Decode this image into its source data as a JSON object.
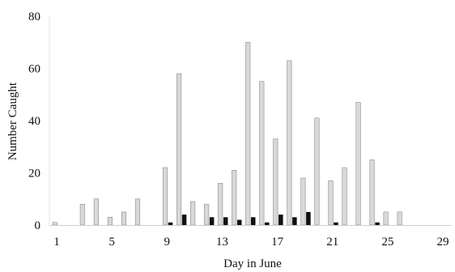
{
  "chart_data": {
    "type": "bar",
    "xlabel": "Day in June",
    "ylabel": "Number Caught",
    "xticks": [
      1,
      5,
      9,
      13,
      17,
      21,
      25,
      29
    ],
    "yticks": [
      0,
      20,
      40,
      60,
      80
    ],
    "xlim": [
      1,
      29
    ],
    "ylim": [
      0,
      80
    ],
    "grid": false,
    "legend": "none",
    "series": [
      {
        "color": "#d9d9d9",
        "values": [
          {
            "x": 1,
            "y": 1
          },
          {
            "x": 3,
            "y": 8
          },
          {
            "x": 4,
            "y": 10
          },
          {
            "x": 5,
            "y": 3
          },
          {
            "x": 6,
            "y": 5
          },
          {
            "x": 7,
            "y": 10
          },
          {
            "x": 9,
            "y": 22
          },
          {
            "x": 10,
            "y": 58
          },
          {
            "x": 11,
            "y": 9
          },
          {
            "x": 12,
            "y": 8
          },
          {
            "x": 13,
            "y": 16
          },
          {
            "x": 14,
            "y": 21
          },
          {
            "x": 15,
            "y": 70
          },
          {
            "x": 16,
            "y": 55
          },
          {
            "x": 17,
            "y": 33
          },
          {
            "x": 18,
            "y": 63
          },
          {
            "x": 19,
            "y": 18
          },
          {
            "x": 20,
            "y": 41
          },
          {
            "x": 21,
            "y": 17
          },
          {
            "x": 22,
            "y": 22
          },
          {
            "x": 23,
            "y": 47
          },
          {
            "x": 24,
            "y": 25
          },
          {
            "x": 25,
            "y": 5
          },
          {
            "x": 26,
            "y": 5
          }
        ]
      },
      {
        "color": "#111111",
        "values": [
          {
            "x": 9,
            "y": 1
          },
          {
            "x": 10,
            "y": 4
          },
          {
            "x": 12,
            "y": 3
          },
          {
            "x": 13,
            "y": 3
          },
          {
            "x": 14,
            "y": 2
          },
          {
            "x": 15,
            "y": 3
          },
          {
            "x": 16,
            "y": 1
          },
          {
            "x": 17,
            "y": 4
          },
          {
            "x": 18,
            "y": 3
          },
          {
            "x": 19,
            "y": 5
          },
          {
            "x": 21,
            "y": 1
          },
          {
            "x": 24,
            "y": 1
          }
        ]
      }
    ]
  }
}
